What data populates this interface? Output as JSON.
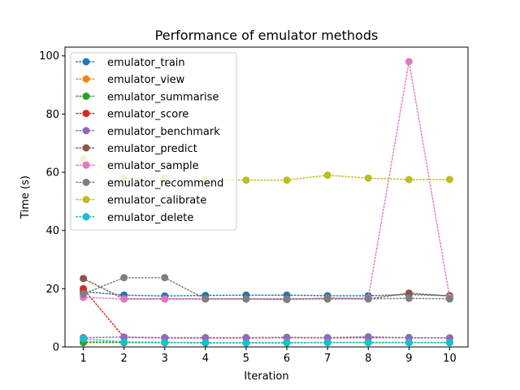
{
  "chart_data": {
    "type": "line",
    "title": "Performance of emulator methods",
    "xlabel": "Iteration",
    "ylabel": "Time (s)",
    "x": [
      1,
      2,
      3,
      4,
      5,
      6,
      7,
      8,
      9,
      10
    ],
    "xticks": [
      1,
      2,
      3,
      4,
      5,
      6,
      7,
      8,
      9,
      10
    ],
    "yticks": [
      0,
      20,
      40,
      60,
      80,
      100
    ],
    "xlim": [
      0.55,
      10.45
    ],
    "ylim": [
      0,
      103
    ],
    "grid": false,
    "legend_position": "top-left",
    "series": [
      {
        "name": "emulator_train",
        "color": "#1f77b4",
        "values": [
          19.0,
          17.8,
          17.5,
          17.7,
          17.8,
          17.8,
          17.6,
          17.6,
          18.0,
          17.6
        ]
      },
      {
        "name": "emulator_view",
        "color": "#ff7f0e",
        "values": [
          1.8,
          1.6,
          1.5,
          1.4,
          1.5,
          1.5,
          1.5,
          1.6,
          1.5,
          1.5
        ]
      },
      {
        "name": "emulator_summarise",
        "color": "#2ca02c",
        "values": [
          1.5,
          1.5,
          1.5,
          1.4,
          1.4,
          1.4,
          1.5,
          1.5,
          1.5,
          1.5
        ]
      },
      {
        "name": "emulator_score",
        "color": "#d62728",
        "values": [
          20.0,
          3.3,
          3.1,
          3.1,
          3.1,
          3.2,
          3.1,
          3.2,
          3.2,
          3.1
        ]
      },
      {
        "name": "emulator_benchmark",
        "color": "#9467bd",
        "values": [
          3.2,
          3.4,
          3.2,
          3.2,
          3.2,
          3.3,
          3.2,
          3.5,
          3.1,
          3.1
        ]
      },
      {
        "name": "emulator_predict",
        "color": "#8c564b",
        "values": [
          23.5,
          16.5,
          16.5,
          16.5,
          16.5,
          16.5,
          16.5,
          16.5,
          18.5,
          17.5
        ]
      },
      {
        "name": "emulator_sample",
        "color": "#e377c2",
        "values": [
          17.0,
          16.5,
          16.5,
          16.5,
          16.5,
          16.4,
          16.8,
          16.8,
          98.0,
          17.0
        ]
      },
      {
        "name": "emulator_recommend",
        "color": "#7f7f7f",
        "values": [
          18.2,
          23.8,
          23.8,
          16.5,
          16.5,
          16.3,
          16.7,
          16.5,
          16.7,
          16.5
        ]
      },
      {
        "name": "emulator_calibrate",
        "color": "#bcbd22",
        "values": [
          64.5,
          58.0,
          58.0,
          57.5,
          57.3,
          57.3,
          59.0,
          58.0,
          57.5,
          57.5
        ]
      },
      {
        "name": "emulator_delete",
        "color": "#17becf",
        "values": [
          2.8,
          1.7,
          1.6,
          1.5,
          1.4,
          1.5,
          1.5,
          1.5,
          1.5,
          1.5
        ]
      }
    ]
  }
}
